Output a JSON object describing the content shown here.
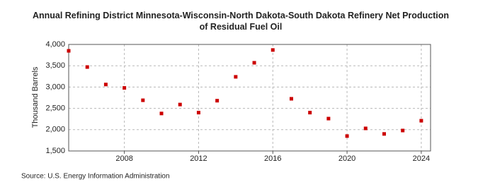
{
  "chart_data": {
    "type": "scatter",
    "title": "Annual Refining District Minnesota-Wisconsin-North Dakota-South Dakota Refinery Net Production of Residual Fuel Oil",
    "y_label": "Thousand Barrels",
    "source": "Source: U.S. Energy Information Administration",
    "x": [
      2005,
      2006,
      2007,
      2008,
      2009,
      2010,
      2011,
      2012,
      2013,
      2014,
      2015,
      2016,
      2017,
      2018,
      2019,
      2020,
      2021,
      2022,
      2023,
      2024
    ],
    "series": [
      {
        "name": "Net Production",
        "color": "#cc0000",
        "values": [
          3850,
          3470,
          3060,
          2980,
          2690,
          2380,
          2590,
          2400,
          2680,
          3240,
          3570,
          3870,
          2725,
          2400,
          2260,
          1850,
          2030,
          1900,
          1980,
          2210
        ]
      }
    ],
    "xlim": [
      2005,
      2024.5
    ],
    "xticks": [
      2008,
      2012,
      2016,
      2020,
      2024
    ],
    "ylim": [
      1500,
      4000
    ],
    "yticks": [
      {
        "value": 1500,
        "label": "1,500"
      },
      {
        "value": 2000,
        "label": "2,000"
      },
      {
        "value": 2500,
        "label": "2,500"
      },
      {
        "value": 3000,
        "label": "3,000"
      },
      {
        "value": 3500,
        "label": "3,500"
      },
      {
        "value": 4000,
        "label": "4,000"
      }
    ],
    "grid": true
  }
}
